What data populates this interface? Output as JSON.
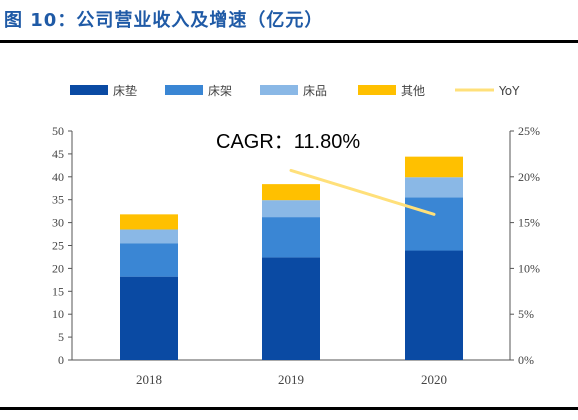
{
  "page": {
    "title": "图 10：公司营业收入及增速（亿元）"
  },
  "chart_data": {
    "type": "bar",
    "stacked": true,
    "title": "",
    "categories": [
      "2018",
      "2019",
      "2020"
    ],
    "series": [
      {
        "name": "床垫",
        "values": [
          18.2,
          22.4,
          23.9
        ],
        "color": "#0a4aa3"
      },
      {
        "name": "床架",
        "values": [
          7.3,
          8.8,
          11.6
        ],
        "color": "#3a86d4"
      },
      {
        "name": "床品",
        "values": [
          3.0,
          3.7,
          4.4
        ],
        "color": "#8ab8e6"
      },
      {
        "name": "其他",
        "values": [
          3.3,
          3.5,
          4.5
        ],
        "color": "#ffc000"
      }
    ],
    "line_series": {
      "name": "YoY",
      "x": [
        "2019",
        "2020"
      ],
      "values": [
        20.7,
        15.9
      ],
      "axis": "right",
      "color": "#ffe07a"
    },
    "y_left": {
      "min": 0,
      "max": 50,
      "ticks": [
        "0",
        "5",
        "10",
        "15",
        "20",
        "25",
        "30",
        "35",
        "40",
        "45",
        "50"
      ]
    },
    "y_right": {
      "min": 0,
      "max": 25,
      "ticks": [
        "0%",
        "5%",
        "10%",
        "15%",
        "20%",
        "25%"
      ]
    },
    "annotation": "CAGR：11.80%",
    "legend_position": "top",
    "grid": false
  }
}
